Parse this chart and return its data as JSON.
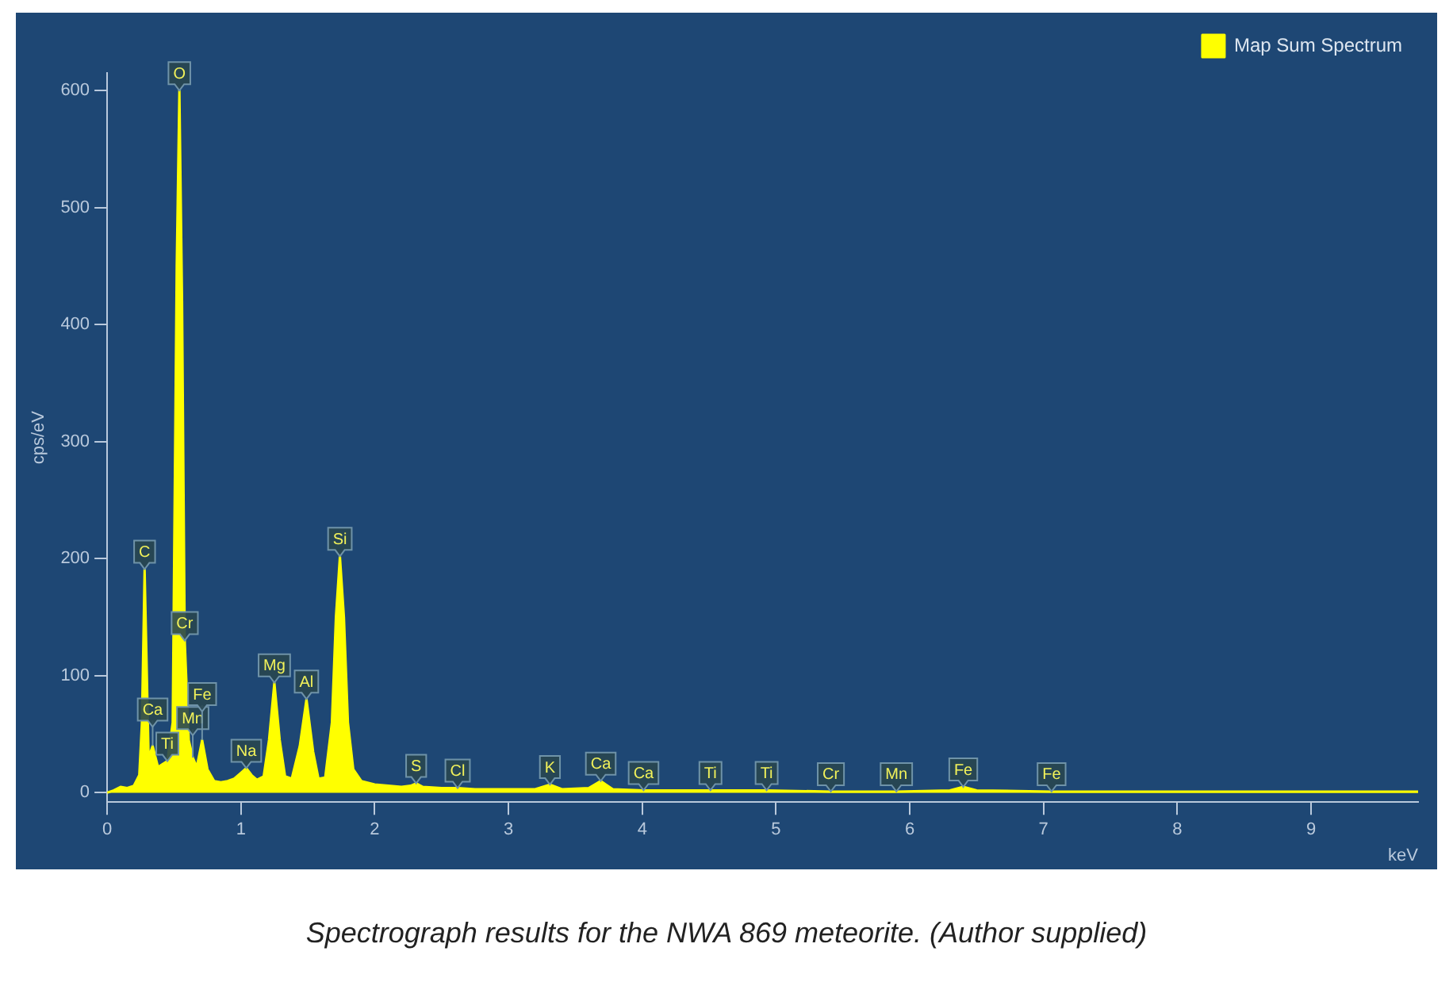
{
  "chart_data": {
    "type": "area",
    "xlabel": "keV",
    "ylabel": "cps/eV",
    "x": [
      0,
      0.05,
      0.1,
      0.15,
      0.2,
      0.24,
      0.26,
      0.28,
      0.31,
      0.34,
      0.38,
      0.45,
      0.49,
      0.52,
      0.54,
      0.56,
      0.58,
      0.61,
      0.64,
      0.67,
      0.71,
      0.75,
      0.8,
      0.85,
      0.9,
      0.95,
      1,
      1.04,
      1.08,
      1.12,
      1.17,
      1.21,
      1.25,
      1.29,
      1.33,
      1.38,
      1.44,
      1.49,
      1.54,
      1.58,
      1.63,
      1.68,
      1.71,
      1.74,
      1.77,
      1.8,
      1.84,
      1.9,
      2,
      2.1,
      2.2,
      2.27,
      2.31,
      2.36,
      2.5,
      2.62,
      2.75,
      3,
      3.2,
      3.31,
      3.4,
      3.6,
      3.69,
      3.78,
      4.01,
      4.51,
      4.93,
      5.41,
      5.9,
      6.3,
      6.4,
      6.5,
      7.06,
      7.5,
      8,
      9,
      9.8
    ],
    "series": [
      {
        "name": "Map Sum Spectrum",
        "color": "#ffff00",
        "values": [
          0,
          2,
          5,
          4,
          6,
          15,
          60,
          191,
          30,
          40,
          22,
          27,
          60,
          450,
          600,
          420,
          130,
          45,
          30,
          22,
          45,
          20,
          10,
          9,
          10,
          12,
          17,
          21,
          15,
          11,
          14,
          45,
          94,
          45,
          14,
          12,
          40,
          80,
          35,
          12,
          13,
          60,
          150,
          202,
          150,
          60,
          20,
          10,
          7,
          6,
          5,
          6,
          8,
          5,
          4,
          4,
          3,
          3,
          3,
          7,
          3,
          4,
          10,
          3,
          2,
          2,
          2,
          1,
          1,
          2,
          5,
          2,
          1,
          1,
          1,
          1,
          1
        ]
      }
    ],
    "xlim": [
      0,
      9.8
    ],
    "ylim": [
      -8,
      615
    ],
    "xticks": [
      0,
      1,
      2,
      3,
      4,
      5,
      6,
      7,
      8,
      9
    ],
    "yticks": [
      0,
      100,
      200,
      300,
      400,
      500,
      600
    ],
    "legend": "top right",
    "annotations": [
      {
        "text": "C",
        "x": 0.28,
        "y": 191
      },
      {
        "text": "O",
        "x": 0.54,
        "y": 600
      },
      {
        "text": "Ca",
        "x": 0.34,
        "y": 40
      },
      {
        "text": "Ti",
        "x": 0.45,
        "y": 27
      },
      {
        "text": "Cr",
        "x": 0.58,
        "y": 130
      },
      {
        "text": "Mn",
        "x": 0.64,
        "y": 30
      },
      {
        "text": "Fe",
        "x": 0.71,
        "y": 45
      },
      {
        "text": "Na",
        "x": 1.04,
        "y": 21
      },
      {
        "text": "Mg",
        "x": 1.25,
        "y": 94
      },
      {
        "text": "Al",
        "x": 1.49,
        "y": 80
      },
      {
        "text": "Si",
        "x": 1.74,
        "y": 202
      },
      {
        "text": "S",
        "x": 2.31,
        "y": 8
      },
      {
        "text": "Cl",
        "x": 2.62,
        "y": 4
      },
      {
        "text": "K",
        "x": 3.31,
        "y": 7
      },
      {
        "text": "Ca",
        "x": 3.69,
        "y": 10
      },
      {
        "text": "Ca",
        "x": 4.01,
        "y": 2
      },
      {
        "text": "Ti",
        "x": 4.51,
        "y": 2
      },
      {
        "text": "Ti",
        "x": 4.93,
        "y": 2
      },
      {
        "text": "Cr",
        "x": 5.41,
        "y": 1
      },
      {
        "text": "Mn",
        "x": 5.9,
        "y": 1
      },
      {
        "text": "Fe",
        "x": 6.4,
        "y": 5
      },
      {
        "text": "Fe",
        "x": 7.06,
        "y": 1
      },
      "Spectrograph results for the NWA 869 meteorite. (Author supplied)"
    ]
  }
}
